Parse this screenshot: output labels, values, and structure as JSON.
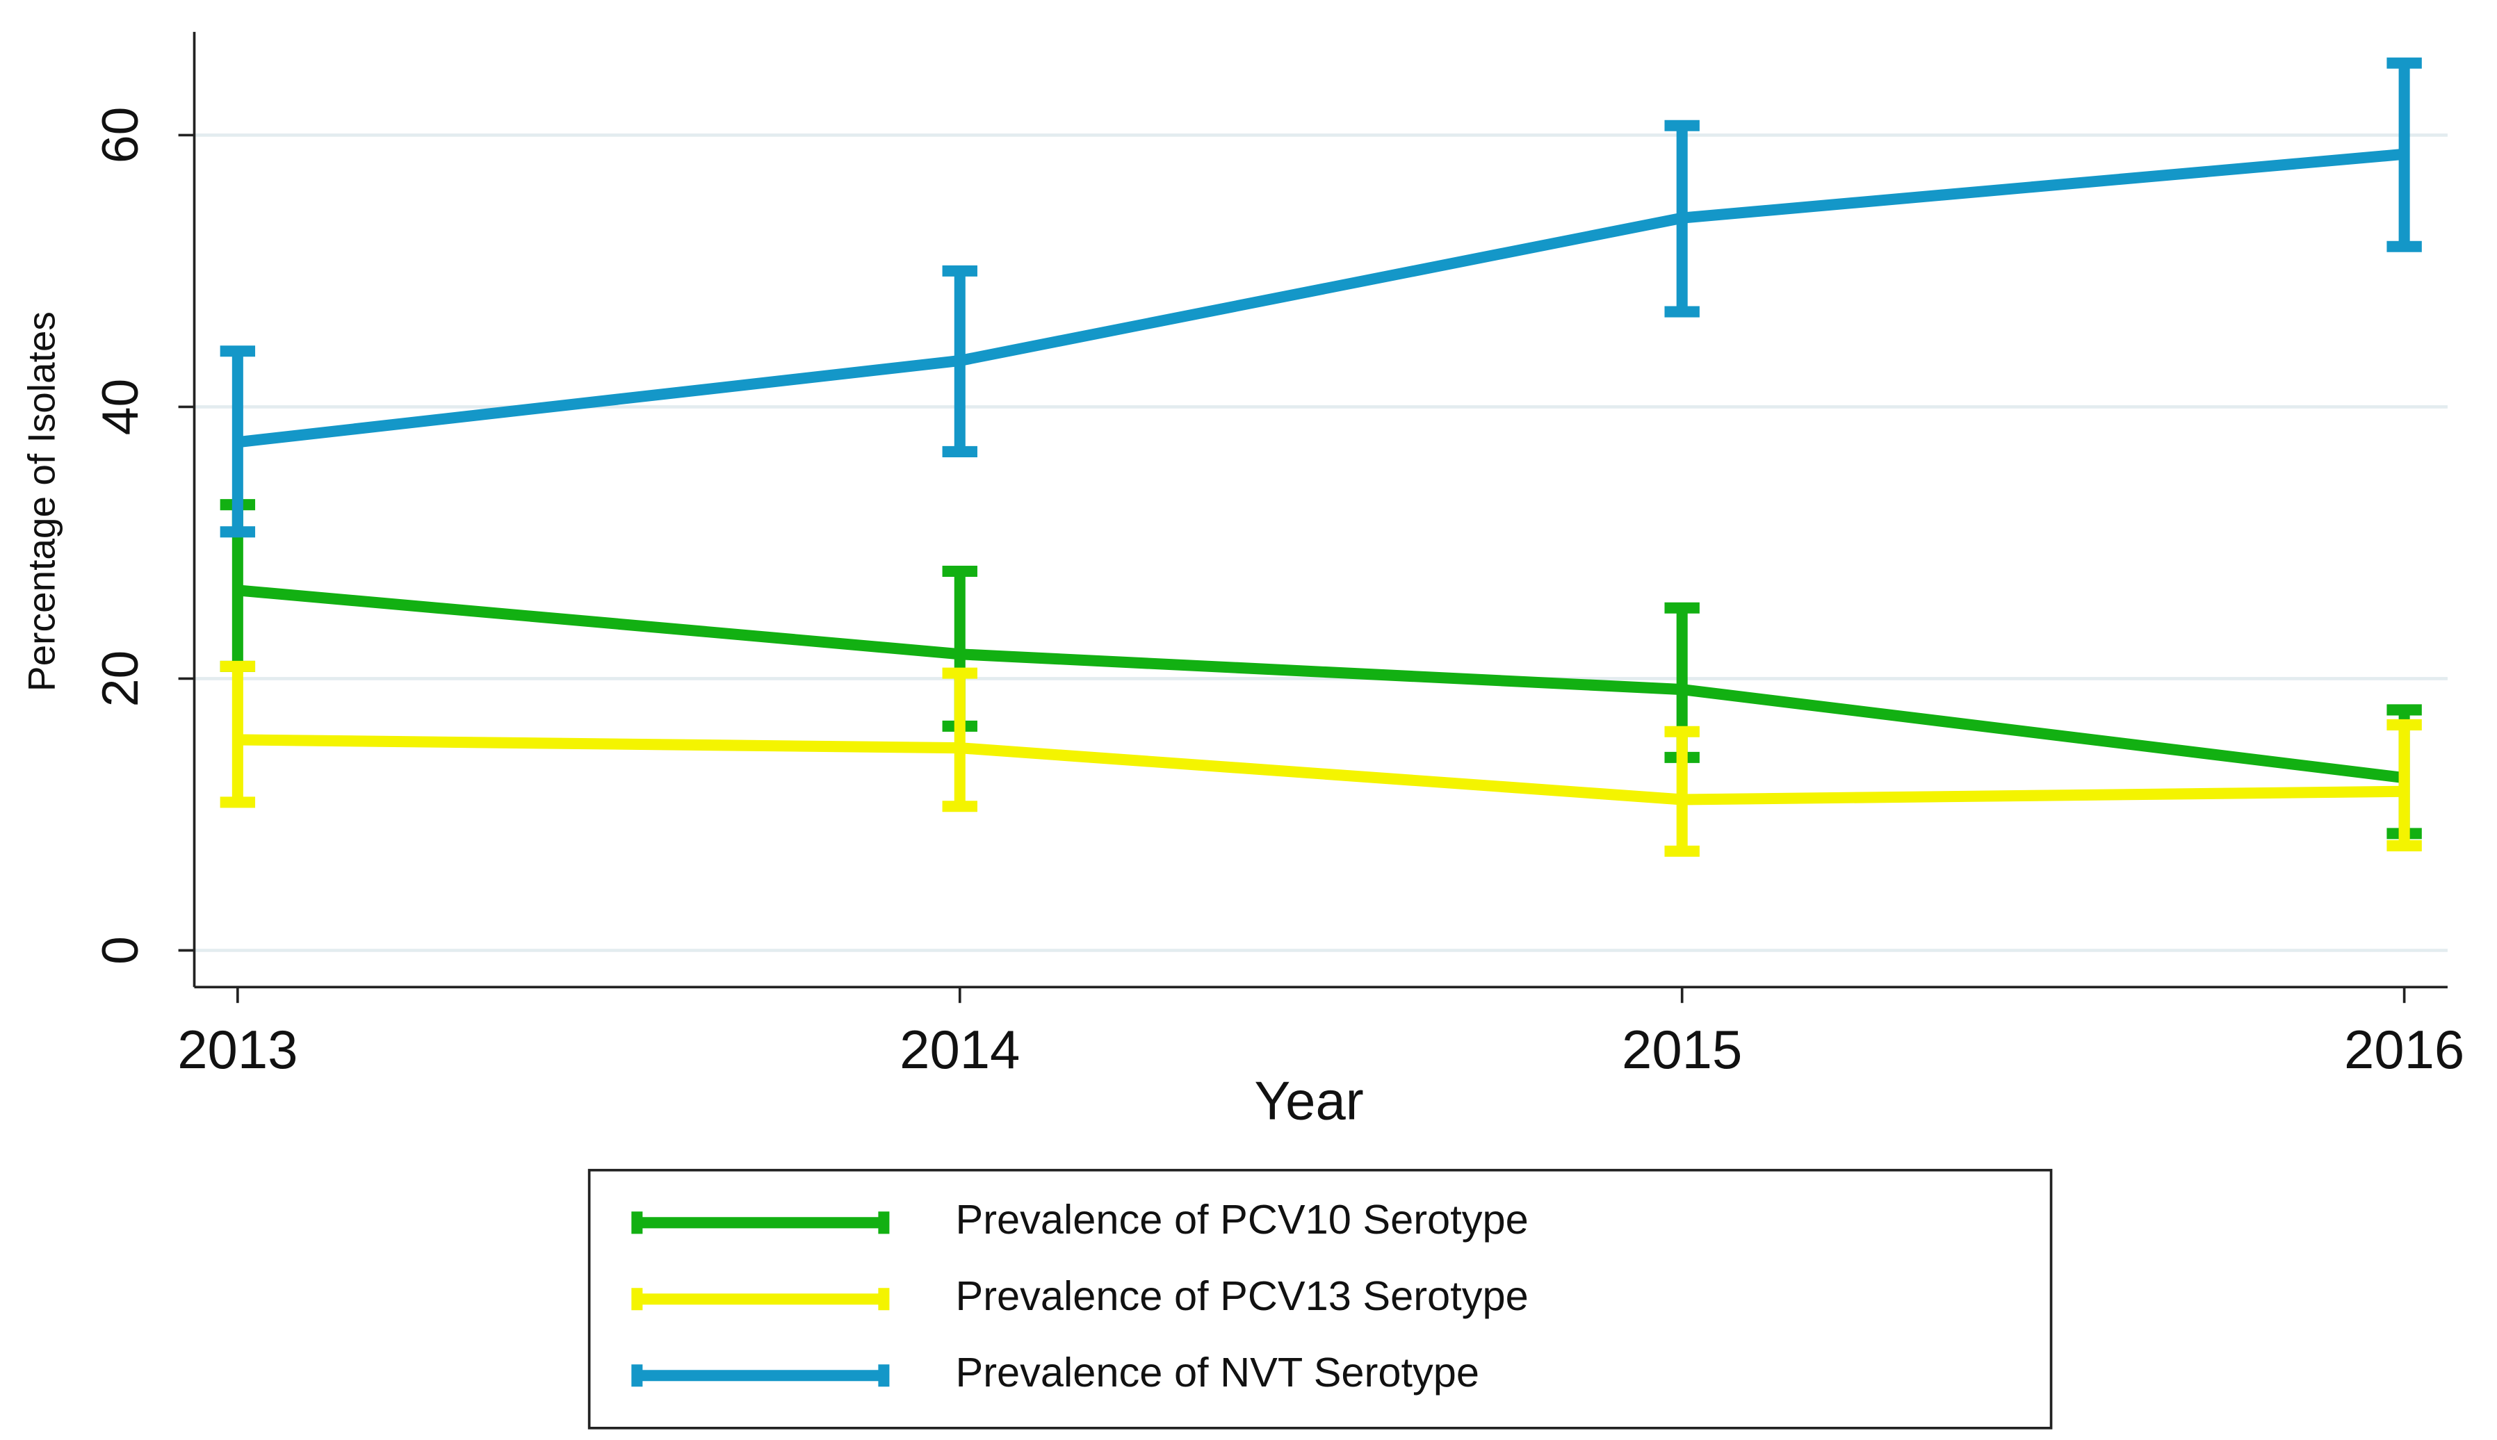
{
  "chart_data": {
    "type": "line",
    "x_label": "Year",
    "y_label": "Percentage of Isolates",
    "x": [
      2013,
      2014,
      2015,
      2016
    ],
    "xlim": [
      2012.94,
      2016.06
    ],
    "xticks": [
      2013,
      2014,
      2015,
      2016
    ],
    "ylim": [
      -2.7,
      67.6
    ],
    "yticks": [
      0,
      20,
      40,
      60
    ],
    "grid": true,
    "legend": "bottom",
    "series": [
      {
        "name": "Prevalence of PCV10 Serotype",
        "color": "#12b012",
        "values": [
          26.5,
          21.8,
          19.2,
          12.7
        ],
        "lower": [
          20.9,
          16.5,
          14.2,
          8.6
        ],
        "upper": [
          32.8,
          27.9,
          25.2,
          17.7
        ]
      },
      {
        "name": "Prevalence of PCV13 Serotype",
        "color": "#f4f400",
        "values": [
          15.5,
          14.9,
          11.1,
          11.7
        ],
        "lower": [
          10.9,
          10.6,
          7.3,
          7.7
        ],
        "upper": [
          20.9,
          20.4,
          16.1,
          16.6
        ]
      },
      {
        "name": "Prevalence of NVT Serotype",
        "color": "#1497c8",
        "values": [
          37.4,
          43.4,
          53.9,
          58.6
        ],
        "lower": [
          30.8,
          36.7,
          47.0,
          51.8
        ],
        "upper": [
          44.1,
          50.0,
          60.7,
          65.3
        ]
      }
    ]
  }
}
